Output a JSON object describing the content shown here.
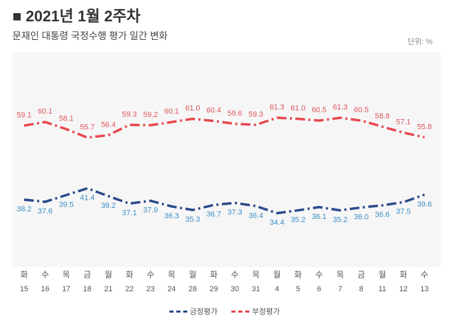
{
  "title": "■ 2021년 1월 2주차",
  "subtitle": "문재인 대통령 국정수행 평가 일간 변화",
  "unit": "단위: %",
  "chart_data": {
    "type": "line",
    "days": [
      "화",
      "수",
      "목",
      "금",
      "월",
      "화",
      "수",
      "목",
      "월",
      "화",
      "수",
      "목",
      "월",
      "화",
      "수",
      "목",
      "금",
      "월",
      "화",
      "수"
    ],
    "categories": [
      "15",
      "16",
      "17",
      "18",
      "21",
      "22",
      "23",
      "24",
      "28",
      "29",
      "30",
      "31",
      "4",
      "5",
      "6",
      "7",
      "8",
      "11",
      "12",
      "13"
    ],
    "series": [
      {
        "name": "긍정평가",
        "color": "#2b4a8a",
        "label_color": "#3a8cc4",
        "values": [
          38.2,
          37.6,
          39.5,
          41.4,
          39.2,
          37.1,
          37.9,
          36.3,
          35.3,
          36.7,
          37.3,
          36.4,
          34.4,
          35.2,
          36.1,
          35.2,
          36.0,
          36.6,
          37.5,
          39.6
        ]
      },
      {
        "name": "부정평가",
        "color": "#e8474e",
        "label_color": "#e0555a",
        "values": [
          59.1,
          60.1,
          58.1,
          55.7,
          56.4,
          59.3,
          59.2,
          60.1,
          61.0,
          60.4,
          59.6,
          59.3,
          61.3,
          61.0,
          60.5,
          61.3,
          60.5,
          58.8,
          57.1,
          55.8
        ]
      }
    ],
    "legend": "bottom"
  }
}
